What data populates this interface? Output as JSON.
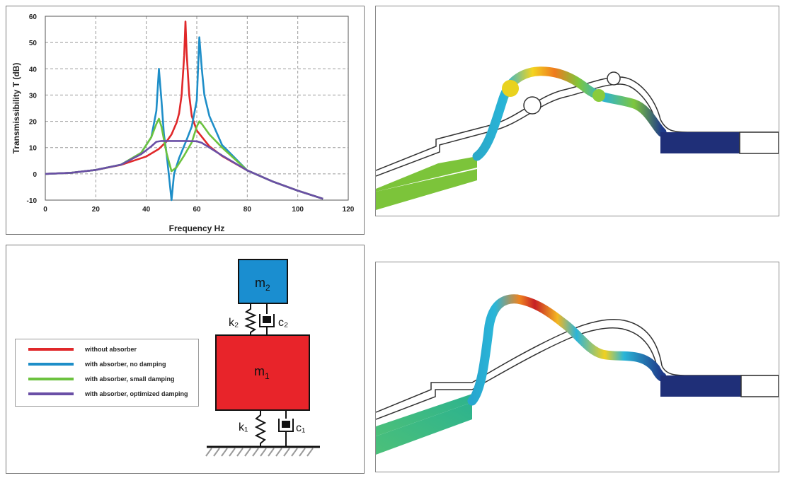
{
  "chart_data": {
    "type": "line",
    "title": "",
    "xlabel": "Frequency Hz",
    "ylabel": "Transmissibility T (dB)",
    "xlim": [
      0,
      120
    ],
    "ylim": [
      -10,
      60
    ],
    "xticks": [
      0,
      20,
      40,
      60,
      80,
      100,
      120
    ],
    "yticks": [
      -10,
      0,
      10,
      20,
      30,
      40,
      50,
      60
    ],
    "grid": true,
    "legend_position": "separate-panel",
    "series": [
      {
        "name": "without absorber",
        "color": "#e0282a",
        "x": [
          0,
          10,
          20,
          30,
          40,
          45,
          48,
          50,
          52,
          53,
          54,
          55,
          55.5,
          56,
          57,
          58,
          60,
          65,
          70,
          80,
          90,
          100,
          110
        ],
        "y": [
          0,
          0.4,
          1.5,
          3.4,
          6.6,
          9.5,
          12.3,
          15,
          19.5,
          23,
          30,
          45,
          58,
          46,
          30,
          22,
          16.5,
          10.5,
          6.8,
          1.3,
          -2.9,
          -6.4,
          -9.5
        ]
      },
      {
        "name": "with absorber, no damping",
        "color": "#1e8ec8",
        "x": [
          0,
          10,
          20,
          30,
          38,
          42,
          44,
          45,
          46,
          47,
          48,
          49,
          50,
          51,
          53,
          56,
          58,
          60,
          61,
          62,
          63,
          65,
          70,
          80,
          90,
          100,
          110
        ],
        "y": [
          0,
          0.4,
          1.5,
          3.5,
          8,
          14,
          24,
          40,
          28,
          15,
          8,
          -1,
          -10,
          0,
          6,
          13,
          18,
          28,
          52,
          40,
          30,
          22,
          11,
          1.3,
          -2.9,
          -6.4,
          -9.5
        ]
      },
      {
        "name": "with absorber, small damping",
        "color": "#6cc23f",
        "x": [
          0,
          10,
          20,
          30,
          38,
          42,
          44,
          45,
          46,
          48,
          50,
          52,
          55,
          58,
          60,
          61,
          62,
          65,
          70,
          80,
          90,
          100,
          110
        ],
        "y": [
          0,
          0.4,
          1.5,
          3.5,
          8,
          14,
          19,
          21,
          18,
          8,
          1,
          2.5,
          7,
          12,
          18,
          20,
          19,
          15,
          10,
          1.3,
          -2.9,
          -6.4,
          -9.5
        ]
      },
      {
        "name": "with absorber, optimized damping",
        "color": "#6a4fa6",
        "x": [
          0,
          10,
          20,
          30,
          38,
          42,
          44,
          46,
          50,
          55,
          60,
          62,
          65,
          70,
          80,
          90,
          100,
          110
        ],
        "y": [
          0,
          0.4,
          1.5,
          3.5,
          7.5,
          10.5,
          12.2,
          12.5,
          12.5,
          12.5,
          12.4,
          11.8,
          10,
          7,
          1.3,
          -2.9,
          -6.4,
          -9.5
        ]
      }
    ]
  },
  "model": {
    "m2_base": "m",
    "m2_sub": "2",
    "m1_base": "m",
    "m1_sub": "1",
    "k2": "k₂",
    "c2": "c₂",
    "k1": "k₁",
    "c1": "c₁",
    "m2_color": "#1a8ed0",
    "m1_color": "#e8242a"
  },
  "fem": {
    "bar_color": "#1f2f78",
    "green_color": "#7cc43a"
  }
}
